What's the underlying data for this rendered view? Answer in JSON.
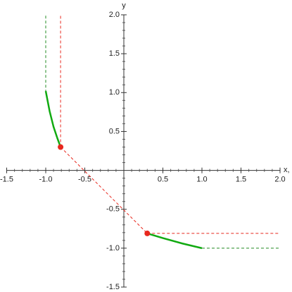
{
  "chart_data": {
    "type": "line",
    "xlabel": "x,",
    "ylabel": "y",
    "xlim": [
      -1.5,
      2.0
    ],
    "ylim": [
      -1.5,
      2.0
    ],
    "xticks": [
      {
        "value": -1.5,
        "label": "-1.5"
      },
      {
        "value": -1.0,
        "label": "-1.0"
      },
      {
        "value": -0.5,
        "label": "-0.5"
      },
      0.5,
      {
        "value": 1.0,
        "label": "1.0"
      },
      1.5,
      {
        "value": 2.0,
        "label": "2.0"
      }
    ],
    "yticks": [
      {
        "value": -1.5,
        "label": "-1.5"
      },
      {
        "value": -1.0,
        "label": "-1.0"
      },
      {
        "value": -0.5,
        "label": "-0.5"
      },
      0.5,
      {
        "value": 1.0,
        "label": "1.0"
      },
      1.5,
      {
        "value": 2.0,
        "label": "2.0"
      }
    ],
    "minor_xticks": [
      -1.4,
      -1.3,
      -1.2,
      -1.1,
      -0.9,
      -0.8,
      -0.7,
      -0.6,
      -0.4,
      -0.3,
      -0.2,
      -0.1,
      0.1,
      0.2,
      0.3,
      0.4,
      0.6,
      0.7,
      0.8,
      0.9,
      1.1,
      1.2,
      1.3,
      1.4,
      1.6,
      1.7,
      1.8,
      1.9
    ],
    "minor_yticks": [
      -1.4,
      -1.3,
      -1.2,
      -1.1,
      -0.9,
      -0.8,
      -0.7,
      -0.6,
      -0.4,
      -0.3,
      -0.2,
      -0.1,
      0.1,
      0.2,
      0.3,
      0.4,
      0.6,
      0.7,
      0.8,
      0.9,
      1.1,
      1.2,
      1.3,
      1.4,
      1.6,
      1.7,
      1.8,
      1.9
    ],
    "series": [
      {
        "color": "#228b22",
        "style": "dashed",
        "x": [
          -1.0,
          -1.0
        ],
        "values": [
          1.0,
          2.0
        ]
      },
      {
        "color": "#e8281e",
        "style": "dashed",
        "x": [
          -0.81,
          -0.81
        ],
        "values": [
          0.3,
          2.0
        ]
      },
      {
        "color": "#e8281e",
        "style": "dashed",
        "x": [
          -0.81,
          0.3
        ],
        "values": [
          0.3,
          -0.81
        ]
      },
      {
        "color": "#e8281e",
        "style": "dashed",
        "x": [
          0.3,
          2.0
        ],
        "values": [
          -0.81,
          -0.81
        ]
      },
      {
        "color": "#228b22",
        "style": "dashed",
        "x": [
          1.0,
          2.0
        ],
        "values": [
          -1.0,
          -1.0
        ]
      },
      {
        "color": "#11aa11",
        "style": "solid",
        "x": [
          -1.0,
          -0.95,
          -0.9,
          -0.85,
          -0.81
        ],
        "values": [
          1.02,
          0.76,
          0.56,
          0.41,
          0.3
        ]
      },
      {
        "color": "#11aa11",
        "style": "solid",
        "x": [
          0.3,
          0.5,
          0.75,
          1.0
        ],
        "values": [
          -0.81,
          -0.87,
          -0.94,
          -1.0
        ]
      }
    ],
    "points": {
      "color": "#e8281e",
      "x": [
        -0.81,
        0.3
      ],
      "values": [
        0.3,
        -0.81
      ]
    }
  }
}
